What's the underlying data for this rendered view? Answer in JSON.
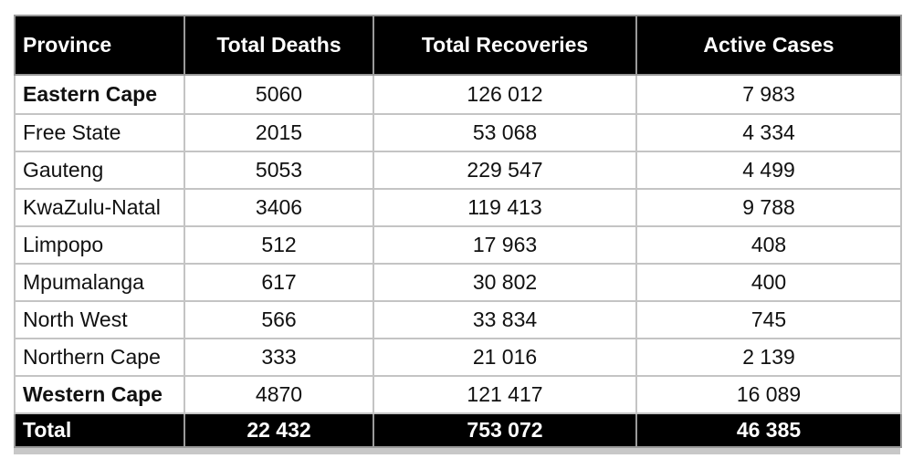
{
  "chart_data": {
    "type": "table",
    "columns": [
      "Province",
      "Total Deaths",
      "Total Recoveries",
      "Active Cases"
    ],
    "rows": [
      {
        "province": "Eastern Cape",
        "deaths": "5060",
        "recoveries": "126 012",
        "active": "7 983",
        "bold": true
      },
      {
        "province": "Free State",
        "deaths": "2015",
        "recoveries": "53 068",
        "active": "4 334",
        "bold": false
      },
      {
        "province": "Gauteng",
        "deaths": "5053",
        "recoveries": "229 547",
        "active": "4 499",
        "bold": false
      },
      {
        "province": "KwaZulu-Natal",
        "deaths": "3406",
        "recoveries": "119 413",
        "active": "9 788",
        "bold": false
      },
      {
        "province": "Limpopo",
        "deaths": "512",
        "recoveries": "17 963",
        "active": "408",
        "bold": false
      },
      {
        "province": "Mpumalanga",
        "deaths": "617",
        "recoveries": "30 802",
        "active": "400",
        "bold": false
      },
      {
        "province": "North West",
        "deaths": "566",
        "recoveries": "33 834",
        "active": "745",
        "bold": false
      },
      {
        "province": "Northern Cape",
        "deaths": "333",
        "recoveries": "21 016",
        "active": "2 139",
        "bold": false
      },
      {
        "province": "Western Cape",
        "deaths": "4870",
        "recoveries": "121 417",
        "active": "16 089",
        "bold": true
      }
    ],
    "total": {
      "label": "Total",
      "deaths": "22 432",
      "recoveries": "753 072",
      "active": "46 385"
    }
  },
  "colors": {
    "header_bg": "#000000",
    "header_text": "#ffffff",
    "grid": "#c4c4c4"
  }
}
